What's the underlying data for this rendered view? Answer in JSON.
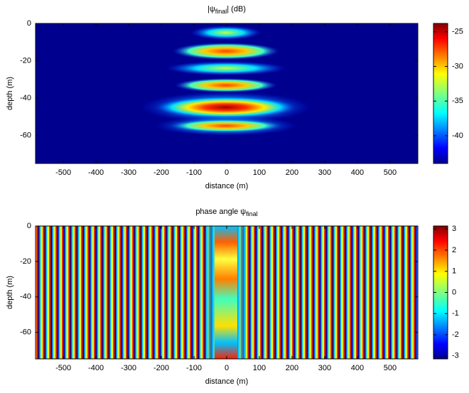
{
  "chart_data": [
    {
      "type": "heatmap",
      "title": {
        "main": "|ψ",
        "sub": "final",
        "tail": "| (dB)"
      },
      "x_label": "distance (m)",
      "y_label": "depth (m)",
      "xlim": [
        -585,
        585
      ],
      "xticks": [
        -500,
        -400,
        -300,
        -200,
        -100,
        0,
        100,
        200,
        300,
        400,
        500
      ],
      "ylim": [
        -75,
        0
      ],
      "yticks": [
        0,
        -20,
        -40,
        -60
      ],
      "colorbar": {
        "lim": [
          -44,
          -23.8
        ],
        "ticks": [
          -25,
          -30,
          -35,
          -40
        ]
      }
    },
    {
      "type": "heatmap",
      "title": {
        "main": "phase angle ψ",
        "sub": "final",
        "tail": ""
      },
      "x_label": "distance (m)",
      "y_label": "depth (m)",
      "xlim": [
        -585,
        585
      ],
      "xticks": [
        -500,
        -400,
        -300,
        -200,
        -100,
        0,
        100,
        200,
        300,
        400,
        500
      ],
      "ylim": [
        -75,
        0
      ],
      "yticks": [
        0,
        -20,
        -40,
        -60
      ],
      "colorbar": {
        "lim": [
          -3.14,
          3.14
        ],
        "ticks": [
          3,
          2,
          1,
          0,
          -1,
          -2,
          -3
        ]
      }
    }
  ]
}
